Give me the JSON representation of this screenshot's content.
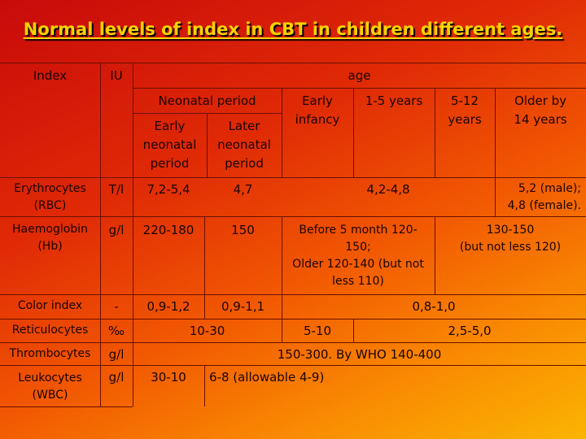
{
  "title": "Normal levels of index in CBT in children different ages.",
  "header": {
    "index": "Index",
    "iu": "IU",
    "age": "age",
    "neonatal_period": "Neonatal period",
    "early_neonatal": "Early\nneonatal\nperiod",
    "later_neonatal": "Later\nneonatal\nperiod",
    "early_infancy": "Early\ninfancy",
    "years_1_5": "1-5 years",
    "years_5_12": "5-12\nyears",
    "older_14": "Older by\n14 years"
  },
  "rows": {
    "rbc": {
      "name": "Erythrocytes\n(RBC)",
      "unit": "T/l",
      "early_neo": "7,2-5,4",
      "later_neo": "4,7",
      "mid": "4,2-4,8",
      "older": "5,2 (male);\n4,8 (female)."
    },
    "hb": {
      "name": "Haemoglobin\n(Hb)",
      "unit": "g/l",
      "early_neo": "220-180",
      "later_neo": "150",
      "mid": "Before 5 month 120-\n150;\nOlder 120-140 (but not\nless 110)",
      "older": "130-150\n(but not less 120)"
    },
    "ci": {
      "name": "Color index",
      "unit": "-",
      "early_neo": "0,9-1,2",
      "later_neo": "0,9-1,1",
      "rest": "0,8-1,0"
    },
    "ret": {
      "name": "Reticulocytes",
      "unit": "‰",
      "neo": "10-30",
      "infancy_1_5": "5-10",
      "older": "2,5-5,0"
    },
    "thr": {
      "name": "Thrombocytes",
      "unit": "g/l",
      "all": "150-300. By  WHO 140-400"
    },
    "wbc": {
      "name": "Leukocytes\n(WBC)",
      "unit": "g/l",
      "early_neo": "30-10",
      "rest": "6-8 (allowable 4-9)"
    }
  }
}
